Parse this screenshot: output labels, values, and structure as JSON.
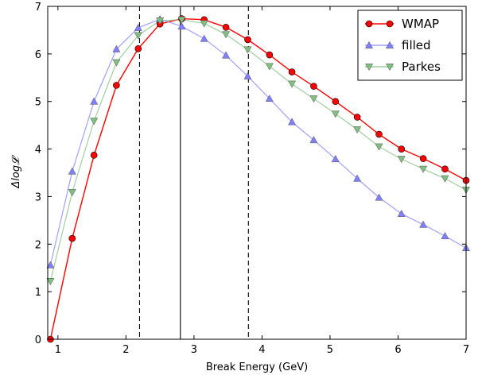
{
  "chart_data": {
    "type": "line",
    "xlabel": "Break Energy (GeV)",
    "ylabel": "Δlog𝓛",
    "xlim": [
      0.85,
      7.0
    ],
    "ylim": [
      0,
      7
    ],
    "xticks": [
      1,
      2,
      3,
      4,
      5,
      6,
      7
    ],
    "xtick_labels": [
      "1",
      "2",
      "3",
      "4",
      "5",
      "6",
      "7"
    ],
    "yticks": [
      0,
      1,
      2,
      3,
      4,
      5,
      6,
      7
    ],
    "ytick_labels": [
      "0",
      "1",
      "2",
      "3",
      "4",
      "5",
      "6",
      "7"
    ],
    "grid": false,
    "legend_position": "top-right",
    "vertical_lines": [
      {
        "x": 2.2,
        "style": "dashed"
      },
      {
        "x": 2.8,
        "style": "solid"
      },
      {
        "x": 3.8,
        "style": "dashed"
      }
    ],
    "x": [
      0.89,
      1.21,
      1.53,
      1.86,
      2.18,
      2.5,
      2.82,
      3.15,
      3.47,
      3.79,
      4.11,
      4.44,
      4.76,
      5.08,
      5.4,
      5.72,
      6.05,
      6.37,
      6.69,
      7.0
    ],
    "series": [
      {
        "name": "WMAP",
        "color": "#ff0000",
        "marker": "circle",
        "values": [
          0.0,
          2.12,
          3.87,
          5.34,
          6.11,
          6.63,
          6.74,
          6.72,
          6.56,
          6.3,
          5.98,
          5.62,
          5.32,
          5.0,
          4.67,
          4.31,
          4.0,
          3.8,
          3.58,
          3.34
        ]
      },
      {
        "name": "filled",
        "color": "#8080ff",
        "marker": "triangle-up",
        "values": [
          1.56,
          3.53,
          5.0,
          6.1,
          6.55,
          6.73,
          6.58,
          6.32,
          5.97,
          5.53,
          5.06,
          4.57,
          4.19,
          3.79,
          3.38,
          2.98,
          2.64,
          2.41,
          2.17,
          1.92
        ]
      },
      {
        "name": "Parkes",
        "color": "#7fbf7f",
        "marker": "triangle-down",
        "values": [
          1.22,
          3.09,
          4.59,
          5.82,
          6.39,
          6.7,
          6.72,
          6.64,
          6.41,
          6.09,
          5.74,
          5.37,
          5.06,
          4.74,
          4.41,
          4.05,
          3.79,
          3.58,
          3.38,
          3.14
        ]
      }
    ]
  }
}
